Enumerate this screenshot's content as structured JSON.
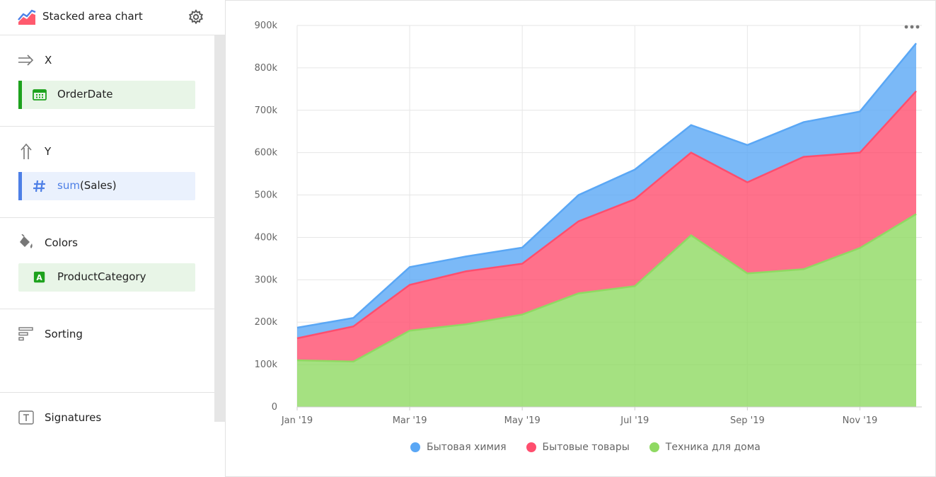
{
  "sidebar": {
    "title": "Stacked area chart",
    "sections": {
      "x": {
        "label": "X",
        "field": "OrderDate"
      },
      "y": {
        "label": "Y",
        "field_fn": "sum",
        "field_arg": "(Sales)"
      },
      "colors": {
        "label": "Colors",
        "field": "ProductCategory"
      },
      "sorting": {
        "label": "Sorting"
      },
      "signatures": {
        "label": "Signatures"
      }
    },
    "icons": {
      "chart_type": "stacked-area-chart-icon",
      "settings": "gear-icon",
      "x_axis": "arrow-right-icon",
      "y_axis": "arrow-up-icon",
      "date_field": "calendar-icon",
      "number_field": "hash-icon",
      "colors": "paint-bucket-icon",
      "string_field": "letter-a-icon",
      "sorting": "sort-icon",
      "signatures": "text-box-icon",
      "more": "more-dots-icon"
    }
  },
  "chart_data": {
    "type": "area",
    "stacked": true,
    "x": [
      "Jan '19",
      "Feb '19",
      "Mar '19",
      "Apr '19",
      "May '19",
      "Jun '19",
      "Jul '19",
      "Aug '19",
      "Sep '19",
      "Oct '19",
      "Nov '19",
      "Dec '19"
    ],
    "xtick_labels": [
      "Jan '19",
      "Mar '19",
      "May '19",
      "Jul '19",
      "Sep '19",
      "Nov '19"
    ],
    "series": [
      {
        "name": "Техника для дома",
        "color": "#8fd962",
        "values": [
          110000,
          107000,
          180000,
          195000,
          218000,
          268000,
          285000,
          405000,
          315000,
          325000,
          375000,
          455000
        ]
      },
      {
        "name": "Бытовые товары",
        "color": "#ff4e6e",
        "values": [
          52000,
          83000,
          108000,
          125000,
          120000,
          170000,
          205000,
          195000,
          215000,
          265000,
          225000,
          290000
        ]
      },
      {
        "name": "Бытовая химия",
        "color": "#5aa7f5",
        "values": [
          25000,
          20000,
          42000,
          35000,
          38000,
          62000,
          70000,
          65000,
          88000,
          82000,
          97000,
          113000
        ]
      }
    ],
    "yticks": [
      "0",
      "100k",
      "200k",
      "300k",
      "400k",
      "500k",
      "600k",
      "700k",
      "800k",
      "900k"
    ],
    "ylim": [
      0,
      900000
    ],
    "grid": true,
    "legend_position": "bottom-center",
    "title": "",
    "xlabel": "",
    "ylabel": ""
  },
  "legend": [
    "Бытовая химия",
    "Бытовые товары",
    "Техника для дома"
  ]
}
